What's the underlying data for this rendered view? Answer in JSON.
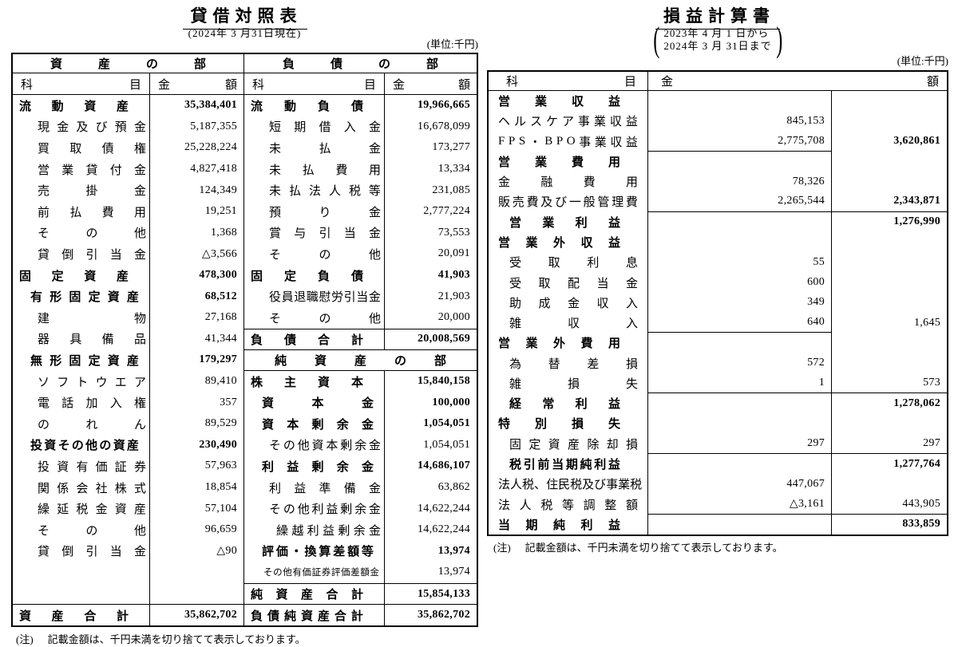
{
  "balance_sheet": {
    "title": "貸借対照表",
    "date_note": "(2024年 3 月31日現在)",
    "unit_note": "(単位:千円)",
    "assets_header": "資産の部",
    "liabilities_header": "負債の部",
    "col_item": "科目",
    "col_amount": "金額",
    "left_rows": [
      {
        "label": "流動資産",
        "value": "35,384,401",
        "cls": "i0"
      },
      {
        "label": "現金及び預金",
        "value": "5,187,355",
        "cls": "i2"
      },
      {
        "label": "買取債権",
        "value": "25,228,224",
        "cls": "i2"
      },
      {
        "label": "営業貸付金",
        "value": "4,827,418",
        "cls": "i2"
      },
      {
        "label": "売掛金",
        "value": "124,349",
        "cls": "i2"
      },
      {
        "label": "前払費用",
        "value": "19,251",
        "cls": "i2"
      },
      {
        "label": "その他",
        "value": "1,368",
        "cls": "i2"
      },
      {
        "label": "貸倒引当金",
        "value": "△3,566",
        "cls": "i2"
      },
      {
        "label": "固定資産",
        "value": "478,300",
        "cls": "i0"
      },
      {
        "label": "有形固定資産",
        "value": "68,512",
        "cls": "i1"
      },
      {
        "label": "建物",
        "value": "27,168",
        "cls": "i2"
      },
      {
        "label": "器具備品",
        "value": "41,344",
        "cls": "i2"
      },
      {
        "label": "無形固定資産",
        "value": "179,297",
        "cls": "i1"
      },
      {
        "label": "ソフトウエア",
        "value": "89,410",
        "cls": "i2"
      },
      {
        "label": "電話加入権",
        "value": "357",
        "cls": "i2"
      },
      {
        "label": "のれん",
        "value": "89,529",
        "cls": "i2"
      },
      {
        "label": "投資その他の資産",
        "value": "230,490",
        "cls": "i1"
      },
      {
        "label": "投資有価証券",
        "value": "57,963",
        "cls": "i2"
      },
      {
        "label": "関係会社株式",
        "value": "18,854",
        "cls": "i2"
      },
      {
        "label": "繰延税金資産",
        "value": "57,104",
        "cls": "i2"
      },
      {
        "label": "その他",
        "value": "96,659",
        "cls": "i2"
      },
      {
        "label": "貸倒引当金",
        "value": "△90",
        "cls": "i2"
      },
      {
        "blank": true
      },
      {
        "blank": true
      },
      {
        "label": "資産合計",
        "value": "35,862,702",
        "cls": "i0",
        "bt": true
      }
    ],
    "right_rows": [
      {
        "label": "流動負債",
        "value": "19,966,665",
        "cls": "i0"
      },
      {
        "label": "短期借入金",
        "value": "16,678,099",
        "cls": "i2"
      },
      {
        "label": "未払金",
        "value": "173,277",
        "cls": "i2"
      },
      {
        "label": "未払費用",
        "value": "13,334",
        "cls": "i2"
      },
      {
        "label": "未払法人税等",
        "value": "231,085",
        "cls": "i2"
      },
      {
        "label": "預り金",
        "value": "2,777,224",
        "cls": "i2"
      },
      {
        "label": "賞与引当金",
        "value": "73,553",
        "cls": "i2"
      },
      {
        "label": "その他",
        "value": "20,091",
        "cls": "i2"
      },
      {
        "label": "固定負債",
        "value": "41,903",
        "cls": "i0"
      },
      {
        "label": "役員退職慰労引当金",
        "value": "21,903",
        "cls": "i2"
      },
      {
        "label": "その他",
        "value": "20,000",
        "cls": "i2"
      },
      {
        "label": "負債合計",
        "value": "20,008,569",
        "cls": "i0",
        "bt": true
      },
      {
        "section": true,
        "label": "純資産の部"
      },
      {
        "label": "株主資本",
        "value": "15,840,158",
        "cls": "i0"
      },
      {
        "label": "資本金",
        "value": "100,000",
        "cls": "i1"
      },
      {
        "label": "資本剰余金",
        "value": "1,054,051",
        "cls": "i1"
      },
      {
        "label": "その他資本剰余金",
        "value": "1,054,051",
        "cls": "i2"
      },
      {
        "label": "利益剰余金",
        "value": "14,686,107",
        "cls": "i1"
      },
      {
        "label": "利益準備金",
        "value": "63,862",
        "cls": "i2"
      },
      {
        "label": "その他利益剰余金",
        "value": "14,622,244",
        "cls": "i2"
      },
      {
        "label": "繰越利益剰余金",
        "value": "14,622,244",
        "cls": "i3"
      },
      {
        "label": "評価・換算差額等",
        "value": "13,974",
        "cls": "i1"
      },
      {
        "label": "その他有価証券評価差額金",
        "value": "13,974",
        "cls": "sm"
      },
      {
        "label": "純資産合計",
        "value": "15,854,133",
        "cls": "i0",
        "bt": true
      },
      {
        "label": "負債純資産合計",
        "value": "35,862,702",
        "cls": "i0",
        "bt": true
      }
    ],
    "note_label": "(注)",
    "note": "記載金額は、千円未満を切り捨てて表示しております。"
  },
  "income_statement": {
    "title": "損益計算書",
    "period_from": "2023年 4 月 1 日から",
    "period_to": "2024年 3 月 31日まで",
    "unit_note": "(単位:千円)",
    "col_item": "科目",
    "col_amount": "金額",
    "rows": [
      {
        "label": "営業収益",
        "cls": "h"
      },
      {
        "label": "ヘルスケア事業収益",
        "cls": "d0",
        "v1": "845,153"
      },
      {
        "label": "FPS・BPO事業収益",
        "cls": "d0",
        "v1": "2,775,708",
        "v2": "3,620,861",
        "v2b": true,
        "b1": true
      },
      {
        "label": "営業費用",
        "cls": "h"
      },
      {
        "label": "金融費用",
        "cls": "d0",
        "v1": "78,326"
      },
      {
        "label": "販売費及び一般管理費",
        "cls": "d0",
        "v1": "2,265,544",
        "v2": "2,343,871",
        "v2b": true,
        "b1": true,
        "b2": true
      },
      {
        "label": "営業利益",
        "cls": "t",
        "v2": "1,276,990",
        "v2b": true
      },
      {
        "label": "営業外収益",
        "cls": "h"
      },
      {
        "label": "受取利息",
        "cls": "d1",
        "v1": "55"
      },
      {
        "label": "受取配当金",
        "cls": "d1",
        "v1": "600"
      },
      {
        "label": "助成金収入",
        "cls": "d1",
        "v1": "349"
      },
      {
        "label": "雑収入",
        "cls": "d1",
        "v1": "640",
        "v2": "1,645",
        "b1": true
      },
      {
        "label": "営業外費用",
        "cls": "h"
      },
      {
        "label": "為替差損",
        "cls": "d1",
        "v1": "572"
      },
      {
        "label": "雑損失",
        "cls": "d1",
        "v1": "1",
        "v2": "573",
        "b1": true,
        "b2": true
      },
      {
        "label": "経常利益",
        "cls": "t",
        "v2": "1,278,062",
        "v2b": true
      },
      {
        "label": "特別損失",
        "cls": "h"
      },
      {
        "label": "固定資産除却損",
        "cls": "d1",
        "v1": "297",
        "v2": "297",
        "b1": true,
        "b2": true
      },
      {
        "label": "税引前当期純利益",
        "cls": "t",
        "v2": "1,277,764",
        "v2b": true
      },
      {
        "label": "法人税、住民税及び事業税",
        "cls": "d0",
        "v1": "447,067"
      },
      {
        "label": "法人税等調整額",
        "cls": "d0",
        "v1": "△3,161",
        "v2": "443,905",
        "b1": true,
        "b2": true
      },
      {
        "label": "当期純利益",
        "cls": "t0",
        "v2": "833,859",
        "v2b": true
      }
    ],
    "note_label": "(注)",
    "note": "記載金額は、千円未満を切り捨てて表示しております。"
  }
}
